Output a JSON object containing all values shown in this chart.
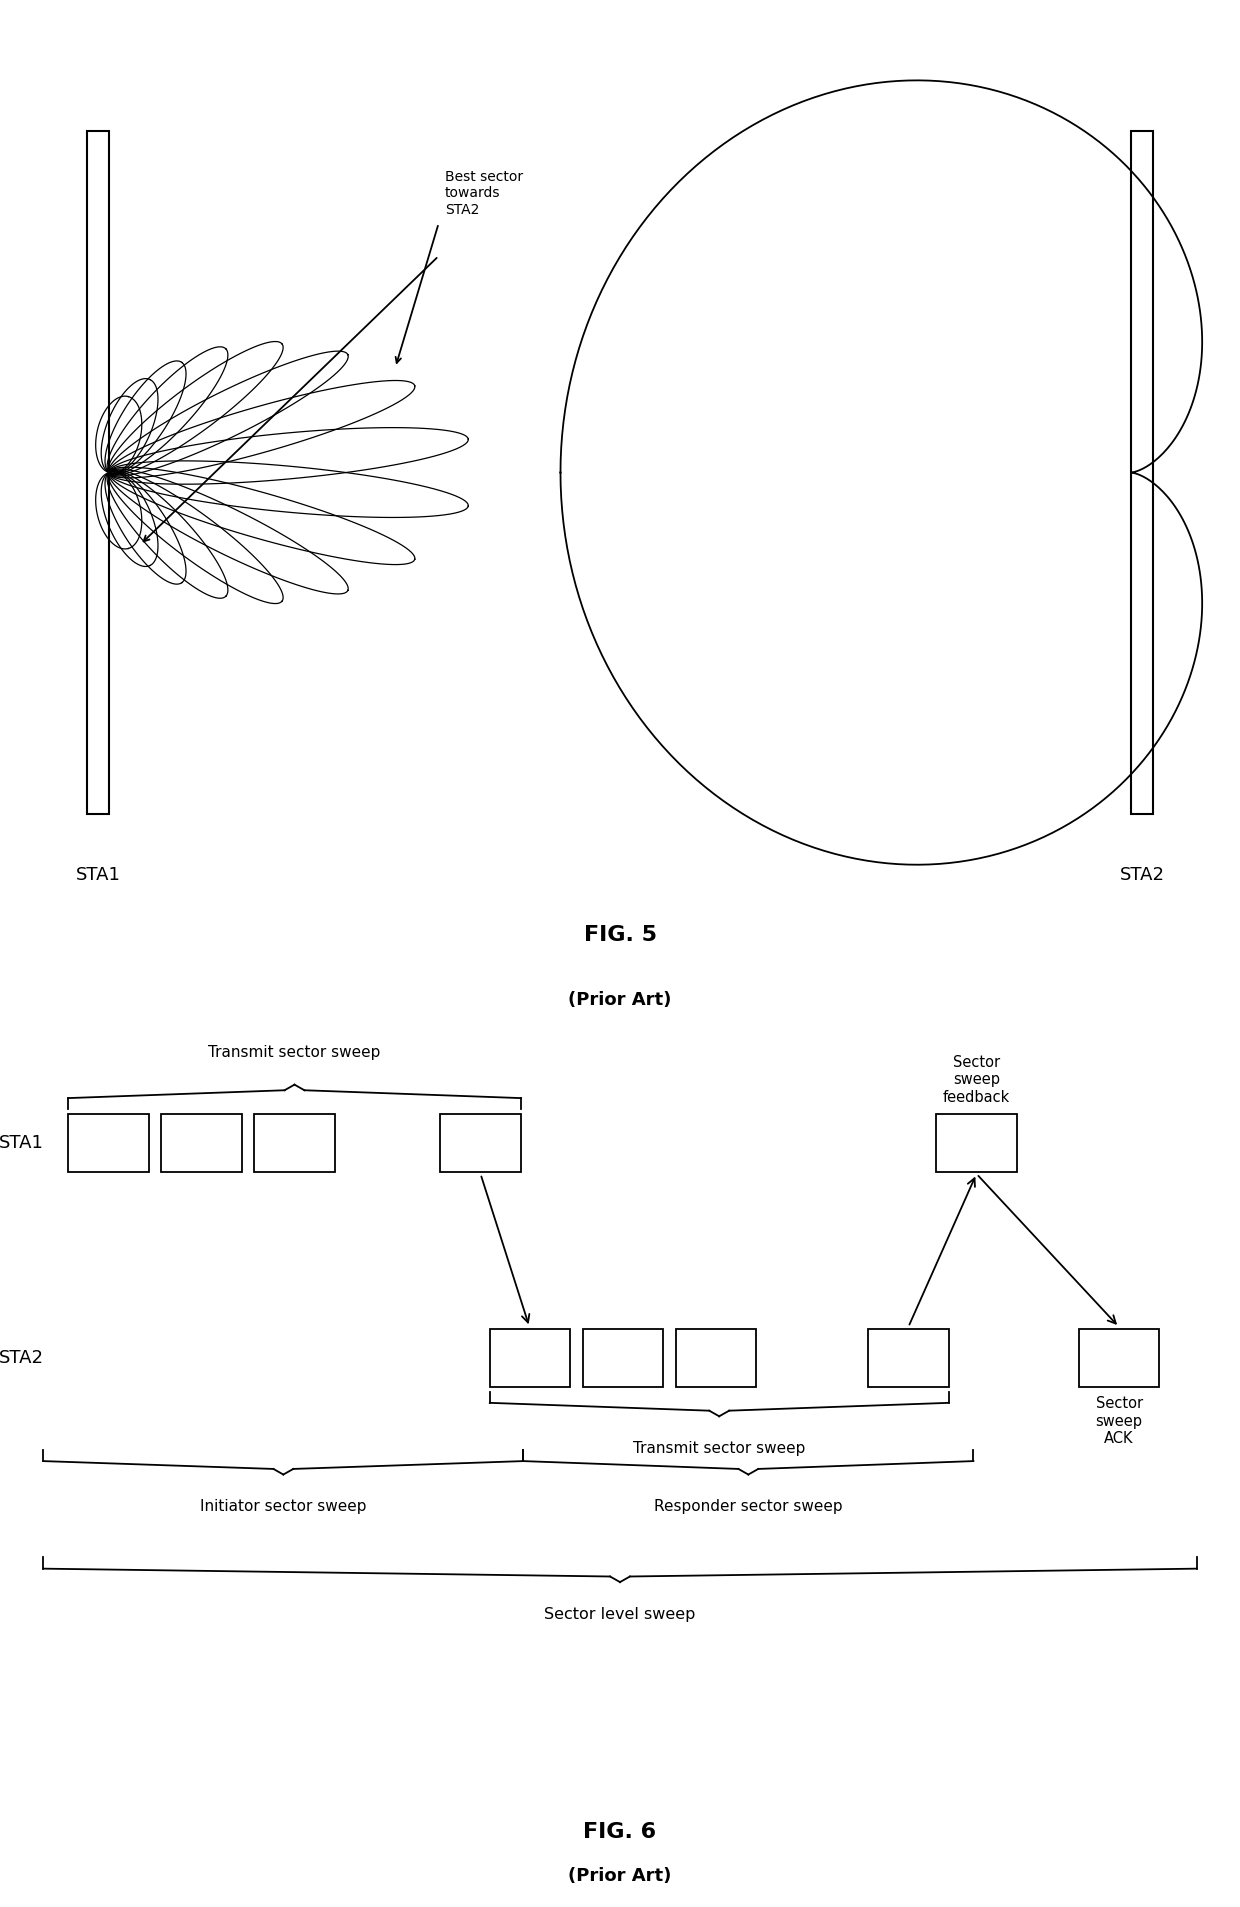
{
  "fig5_title": "FIG. 5",
  "fig5_subtitle": "(Prior Art)",
  "fig6_title": "FIG. 6",
  "fig6_subtitle": "(Prior Art)",
  "sta1_label": "STA1",
  "sta2_label": "STA2",
  "best_sector_label": "Best sector\ntowards\nSTA2",
  "transmit_sector_sweep_label": "Transmit sector sweep",
  "transmit_sector_sweep_label2": "Transmit sector sweep",
  "sector_sweep_feedback_label": "Sector\nsweep\nfeedback",
  "sector_sweep_ack_label": "Sector\nsweep\nACK",
  "initiator_sector_sweep_label": "Initiator sector sweep",
  "responder_sector_sweep_label": "Responder sector sweep",
  "sector_level_sweep_label": "Sector level sweep",
  "num_petals": 16,
  "background_color": "#ffffff",
  "line_color": "#000000"
}
